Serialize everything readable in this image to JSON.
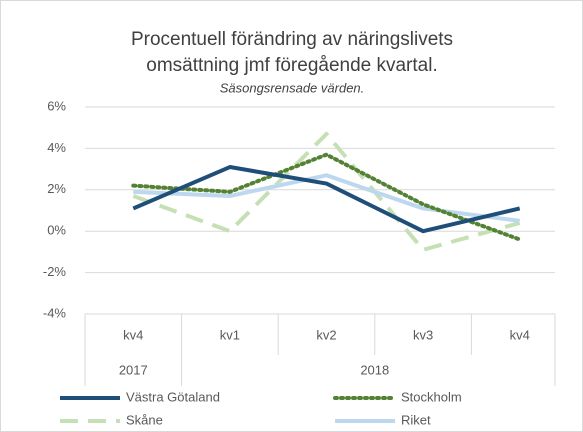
{
  "chart_data": {
    "type": "line",
    "title": [
      "Procentuell förändring av näringslivets",
      "omsättning jmf föregående kvartal."
    ],
    "subtitle": "Säsongsrensade värden.",
    "categories": [
      "kv4",
      "kv1",
      "kv2",
      "kv3",
      "kv4"
    ],
    "category_groups": [
      {
        "label": "2017",
        "span": 1
      },
      {
        "label": "2018",
        "span": 4
      }
    ],
    "series": [
      {
        "name": "Västra Götaland",
        "color": "#1f4e79",
        "style": "solid",
        "values": [
          1.1,
          3.1,
          2.3,
          0.0,
          1.1
        ]
      },
      {
        "name": "Stockholm",
        "color": "#548235",
        "style": "dotted",
        "values": [
          2.2,
          1.9,
          3.7,
          1.3,
          -0.4
        ]
      },
      {
        "name": "Skåne",
        "color": "#c5e0b4",
        "style": "dashed",
        "values": [
          1.7,
          0.0,
          4.7,
          -0.9,
          0.4
        ]
      },
      {
        "name": "Riket",
        "color": "#bdd7ee",
        "style": "solid",
        "values": [
          1.9,
          1.7,
          2.7,
          1.1,
          0.5
        ]
      }
    ],
    "ylim": [
      -4,
      6
    ],
    "yticks": [
      {
        "value": -4,
        "label": "-4%"
      },
      {
        "value": -2,
        "label": "-2%"
      },
      {
        "value": 0,
        "label": "0%"
      },
      {
        "value": 2,
        "label": "2%"
      },
      {
        "value": 4,
        "label": "4%"
      },
      {
        "value": 6,
        "label": "6%"
      }
    ],
    "grid": true,
    "legend": "bottom"
  }
}
